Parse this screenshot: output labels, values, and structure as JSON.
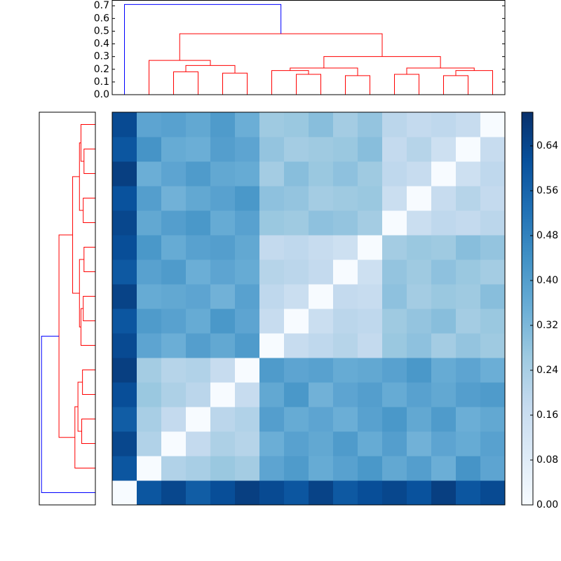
{
  "chart_data": {
    "type": "heatmap",
    "matrix": [
      [
        0,
        0.6,
        0.64,
        0.58,
        0.62,
        0.66,
        0.63,
        0.6,
        0.65,
        0.59,
        0.62,
        0.64,
        0.61,
        0.66,
        0.6,
        0.63
      ],
      [
        0.6,
        0,
        0.22,
        0.24,
        0.27,
        0.25,
        0.38,
        0.41,
        0.36,
        0.39,
        0.42,
        0.37,
        0.4,
        0.35,
        0.43,
        0.38
      ],
      [
        0.64,
        0.22,
        0,
        0.18,
        0.23,
        0.21,
        0.35,
        0.39,
        0.37,
        0.41,
        0.36,
        0.4,
        0.34,
        0.38,
        0.36,
        0.39
      ],
      [
        0.58,
        0.24,
        0.18,
        0,
        0.2,
        0.22,
        0.4,
        0.36,
        0.38,
        0.35,
        0.39,
        0.42,
        0.37,
        0.41,
        0.35,
        0.37
      ],
      [
        0.62,
        0.27,
        0.23,
        0.2,
        0,
        0.17,
        0.37,
        0.42,
        0.34,
        0.38,
        0.4,
        0.36,
        0.39,
        0.37,
        0.4,
        0.41
      ],
      [
        0.66,
        0.25,
        0.21,
        0.22,
        0.17,
        0,
        0.41,
        0.38,
        0.39,
        0.36,
        0.37,
        0.39,
        0.42,
        0.36,
        0.38,
        0.35
      ],
      [
        0.63,
        0.38,
        0.35,
        0.4,
        0.37,
        0.41,
        0,
        0.17,
        0.19,
        0.21,
        0.18,
        0.27,
        0.29,
        0.25,
        0.28,
        0.26
      ],
      [
        0.6,
        0.41,
        0.39,
        0.36,
        0.42,
        0.38,
        0.17,
        0,
        0.16,
        0.2,
        0.19,
        0.26,
        0.28,
        0.3,
        0.25,
        0.27
      ],
      [
        0.65,
        0.36,
        0.37,
        0.38,
        0.34,
        0.39,
        0.19,
        0.16,
        0,
        0.18,
        0.17,
        0.29,
        0.25,
        0.27,
        0.26,
        0.3
      ],
      [
        0.59,
        0.39,
        0.41,
        0.35,
        0.38,
        0.36,
        0.21,
        0.2,
        0.18,
        0,
        0.15,
        0.28,
        0.26,
        0.29,
        0.27,
        0.25
      ],
      [
        0.62,
        0.42,
        0.36,
        0.39,
        0.4,
        0.37,
        0.18,
        0.19,
        0.17,
        0.15,
        0,
        0.25,
        0.27,
        0.26,
        0.3,
        0.28
      ],
      [
        0.64,
        0.37,
        0.4,
        0.42,
        0.36,
        0.39,
        0.27,
        0.26,
        0.29,
        0.28,
        0.25,
        0,
        0.16,
        0.19,
        0.18,
        0.2
      ],
      [
        0.61,
        0.4,
        0.34,
        0.37,
        0.39,
        0.42,
        0.29,
        0.28,
        0.25,
        0.26,
        0.27,
        0.16,
        0,
        0.17,
        0.21,
        0.18
      ],
      [
        0.66,
        0.35,
        0.38,
        0.41,
        0.37,
        0.36,
        0.25,
        0.3,
        0.27,
        0.29,
        0.26,
        0.19,
        0.17,
        0,
        0.15,
        0.19
      ],
      [
        0.6,
        0.43,
        0.36,
        0.35,
        0.4,
        0.38,
        0.28,
        0.25,
        0.26,
        0.27,
        0.3,
        0.18,
        0.21,
        0.15,
        0,
        0.17
      ],
      [
        0.63,
        0.38,
        0.39,
        0.37,
        0.41,
        0.35,
        0.26,
        0.27,
        0.3,
        0.25,
        0.28,
        0.2,
        0.18,
        0.19,
        0.17,
        0
      ]
    ],
    "links": [
      [
        4,
        5,
        0.17
      ],
      [
        2,
        3,
        0.18
      ],
      [
        17,
        16,
        0.23
      ],
      [
        1,
        18,
        0.27
      ],
      [
        9,
        10,
        0.15
      ],
      [
        7,
        8,
        0.16
      ],
      [
        6,
        21,
        0.19
      ],
      [
        22,
        20,
        0.21
      ],
      [
        13,
        14,
        0.15
      ],
      [
        11,
        12,
        0.16
      ],
      [
        24,
        15,
        0.19
      ],
      [
        25,
        26,
        0.21
      ],
      [
        23,
        27,
        0.3
      ],
      [
        19,
        28,
        0.48
      ],
      [
        0,
        29,
        0.71
      ]
    ],
    "color_threshold": 0.6,
    "link_color_below": "#ff0000",
    "link_color_above": "#0000ff",
    "dendrogram_ylim": [
      0,
      0.74
    ],
    "dendrogram_yticks": [
      {
        "value": 0,
        "label": "0.0"
      },
      0.1,
      0.2,
      0.3,
      0.4,
      0.5,
      0.6,
      0.7
    ],
    "colormap": [
      "#f7fbff",
      "#deebf7",
      "#c6dbef",
      "#9ecae1",
      "#6baed6",
      "#4292c6",
      "#2171b5",
      "#08519c",
      "#08306b"
    ],
    "clim": [
      0,
      0.7
    ],
    "colorbar_ticks": [
      {
        "value": 0,
        "label": "0.00"
      },
      0.08,
      0.16,
      0.24,
      0.32,
      {
        "value": 0.4,
        "label": "0.40"
      },
      0.48,
      0.56,
      0.64
    ]
  }
}
